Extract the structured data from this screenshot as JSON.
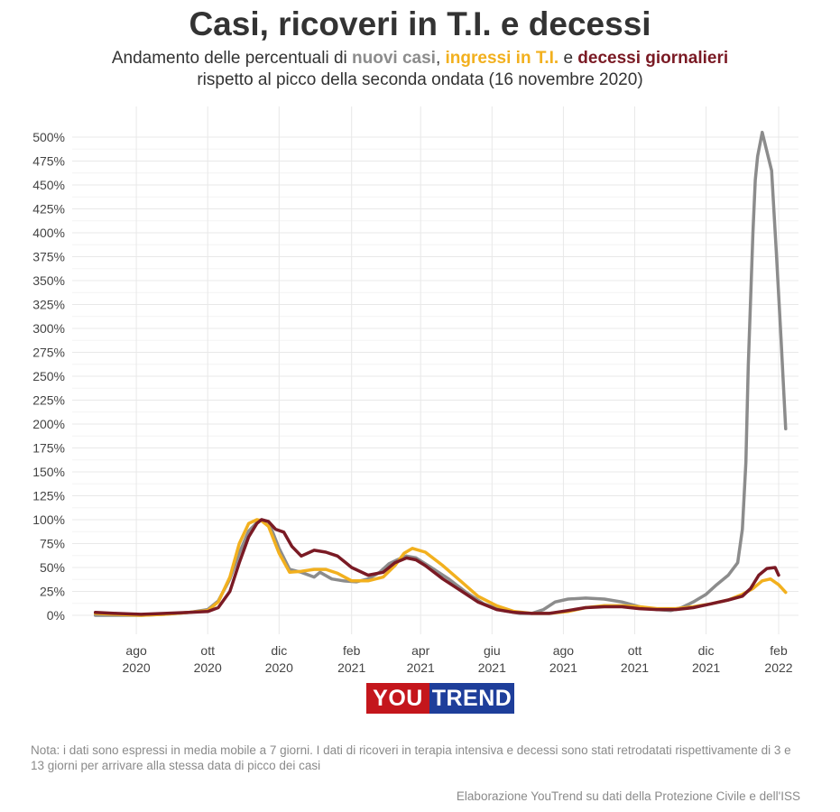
{
  "header": {
    "title": "Casi, ricoveri in T.I. e decessi",
    "subtitle_1": "Andamento delle percentuali di ",
    "subtitle_cases": "nuovi casi",
    "subtitle_comma": ", ",
    "subtitle_icu": "ingressi in T.I.",
    "subtitle_and": " e ",
    "subtitle_deaths": "decessi giornalieri",
    "subtitle_2": "rispetto al picco della seconda ondata (16 novembre 2020)"
  },
  "logo": {
    "part1": "YOU",
    "part2": "TREND"
  },
  "footer": {
    "note": "Nota: i dati sono espressi in media mobile a 7 giorni. I dati di ricoveri in terapia intensiva e decessi sono stati retrodatati rispettivamente di 3 e 13 giorni per arrivare alla stessa data di picco dei casi",
    "source": "Elaborazione YouTrend su dati della Protezione Civile e dell'ISS"
  },
  "colors": {
    "cases": "#8c8c8c",
    "icu": "#f2b01e",
    "deaths": "#7a1a24",
    "grid": "#e8e8e8",
    "logo_red": "#c4161c",
    "logo_blue": "#1e3e9a"
  },
  "chart_data": {
    "type": "line",
    "x_unit": "month",
    "xlim": [
      "2020-06",
      "2022-02"
    ],
    "ylim": [
      -20,
      525
    ],
    "y_ticks": [
      0,
      25,
      50,
      75,
      100,
      125,
      150,
      175,
      200,
      225,
      250,
      275,
      300,
      325,
      350,
      375,
      400,
      425,
      450,
      475,
      500
    ],
    "y_tick_labels": [
      "0%",
      "25%",
      "50%",
      "75%",
      "100%",
      "125%",
      "150%",
      "175%",
      "200%",
      "225%",
      "250%",
      "275%",
      "300%",
      "325%",
      "350%",
      "375%",
      "400%",
      "425%",
      "450%",
      "475%",
      "500%"
    ],
    "x_ticks": [
      {
        "x": "2020-08",
        "month": "ago",
        "year": "2020"
      },
      {
        "x": "2020-10",
        "month": "ott",
        "year": "2020"
      },
      {
        "x": "2020-12",
        "month": "dic",
        "year": "2020"
      },
      {
        "x": "2021-02",
        "month": "feb",
        "year": "2021"
      },
      {
        "x": "2021-04",
        "month": "apr",
        "year": "2021"
      },
      {
        "x": "2021-06",
        "month": "giu",
        "year": "2021"
      },
      {
        "x": "2021-08",
        "month": "ago",
        "year": "2021"
      },
      {
        "x": "2021-10",
        "month": "ott",
        "year": "2021"
      },
      {
        "x": "2021-12",
        "month": "dic",
        "year": "2021"
      },
      {
        "x": "2022-02",
        "month": "feb",
        "year": "2022"
      }
    ],
    "grid": true,
    "legend": "subtitle",
    "series": [
      {
        "name": "nuovi casi",
        "color": "#8c8c8c",
        "x": [
          "2020-06-27",
          "2020-07-15",
          "2020-08-05",
          "2020-08-25",
          "2020-09-15",
          "2020-10-01",
          "2020-10-10",
          "2020-10-20",
          "2020-10-28",
          "2020-11-05",
          "2020-11-12",
          "2020-11-16",
          "2020-11-22",
          "2020-12-01",
          "2020-12-10",
          "2020-12-20",
          "2020-12-31",
          "2021-01-05",
          "2021-01-15",
          "2021-01-25",
          "2021-02-05",
          "2021-02-15",
          "2021-02-25",
          "2021-03-05",
          "2021-03-12",
          "2021-03-20",
          "2021-03-28",
          "2021-04-10",
          "2021-04-25",
          "2021-05-10",
          "2021-05-25",
          "2021-06-10",
          "2021-06-25",
          "2021-07-05",
          "2021-07-15",
          "2021-07-25",
          "2021-08-05",
          "2021-08-20",
          "2021-09-05",
          "2021-09-20",
          "2021-10-05",
          "2021-10-20",
          "2021-11-01",
          "2021-11-10",
          "2021-11-20",
          "2021-12-01",
          "2021-12-10",
          "2021-12-20",
          "2021-12-28",
          "2022-01-01",
          "2022-01-04",
          "2022-01-06",
          "2022-01-08",
          "2022-01-10",
          "2022-01-12",
          "2022-01-14",
          "2022-01-18",
          "2022-01-22",
          "2022-01-26",
          "2022-01-30",
          "2022-02-03",
          "2022-02-07"
        ],
        "values": [
          0,
          0,
          0,
          1,
          3,
          6,
          15,
          38,
          65,
          88,
          97,
          100,
          98,
          70,
          48,
          45,
          40,
          45,
          38,
          36,
          35,
          38,
          45,
          54,
          58,
          62,
          60,
          50,
          38,
          24,
          12,
          5,
          2,
          2,
          6,
          14,
          17,
          18,
          17,
          14,
          9,
          6,
          5,
          8,
          14,
          22,
          32,
          42,
          55,
          90,
          160,
          260,
          330,
          400,
          455,
          480,
          505,
          485,
          465,
          380,
          290,
          195
        ]
      },
      {
        "name": "ingressi in T.I.",
        "color": "#f2b01e",
        "x": [
          "2020-06-27",
          "2020-07-15",
          "2020-08-05",
          "2020-08-25",
          "2020-09-15",
          "2020-10-01",
          "2020-10-10",
          "2020-10-20",
          "2020-10-28",
          "2020-11-05",
          "2020-11-12",
          "2020-11-16",
          "2020-11-22",
          "2020-12-01",
          "2020-12-10",
          "2020-12-20",
          "2020-12-31",
          "2021-01-10",
          "2021-01-20",
          "2021-02-01",
          "2021-02-15",
          "2021-02-28",
          "2021-03-10",
          "2021-03-18",
          "2021-03-25",
          "2021-04-05",
          "2021-04-20",
          "2021-05-05",
          "2021-05-20",
          "2021-06-05",
          "2021-06-20",
          "2021-07-05",
          "2021-07-20",
          "2021-08-05",
          "2021-08-20",
          "2021-09-05",
          "2021-09-20",
          "2021-10-05",
          "2021-10-20",
          "2021-11-05",
          "2021-11-20",
          "2021-12-05",
          "2021-12-20",
          "2022-01-01",
          "2022-01-10",
          "2022-01-18",
          "2022-01-25",
          "2022-02-01",
          "2022-02-07"
        ],
        "values": [
          2,
          1,
          0,
          1,
          3,
          5,
          14,
          40,
          75,
          96,
          100,
          99,
          93,
          65,
          45,
          46,
          48,
          48,
          44,
          36,
          36,
          40,
          52,
          65,
          70,
          66,
          52,
          36,
          20,
          10,
          4,
          2,
          2,
          4,
          8,
          10,
          10,
          9,
          7,
          7,
          9,
          12,
          16,
          22,
          28,
          36,
          38,
          32,
          24
        ]
      },
      {
        "name": "decessi giornalieri",
        "color": "#7a1a24",
        "x": [
          "2020-06-27",
          "2020-07-15",
          "2020-08-05",
          "2020-08-25",
          "2020-09-15",
          "2020-10-01",
          "2020-10-10",
          "2020-10-20",
          "2020-10-28",
          "2020-11-05",
          "2020-11-12",
          "2020-11-16",
          "2020-11-22",
          "2020-11-28",
          "2020-12-05",
          "2020-12-12",
          "2020-12-20",
          "2020-12-31",
          "2021-01-10",
          "2021-01-20",
          "2021-02-01",
          "2021-02-15",
          "2021-02-28",
          "2021-03-10",
          "2021-03-20",
          "2021-03-28",
          "2021-04-05",
          "2021-04-20",
          "2021-05-05",
          "2021-05-20",
          "2021-06-05",
          "2021-06-20",
          "2021-07-05",
          "2021-07-20",
          "2021-08-05",
          "2021-08-20",
          "2021-09-05",
          "2021-09-20",
          "2021-10-05",
          "2021-10-20",
          "2021-11-05",
          "2021-11-20",
          "2021-12-05",
          "2021-12-20",
          "2022-01-01",
          "2022-01-08",
          "2022-01-15",
          "2022-01-22",
          "2022-01-29",
          "2022-02-01"
        ],
        "values": [
          3,
          2,
          1,
          2,
          3,
          4,
          8,
          25,
          55,
          82,
          96,
          100,
          98,
          90,
          87,
          72,
          62,
          68,
          66,
          62,
          50,
          42,
          45,
          55,
          60,
          58,
          52,
          38,
          26,
          14,
          6,
          3,
          2,
          2,
          5,
          8,
          9,
          9,
          7,
          6,
          6,
          8,
          12,
          16,
          20,
          28,
          42,
          49,
          50,
          42
        ]
      }
    ]
  }
}
